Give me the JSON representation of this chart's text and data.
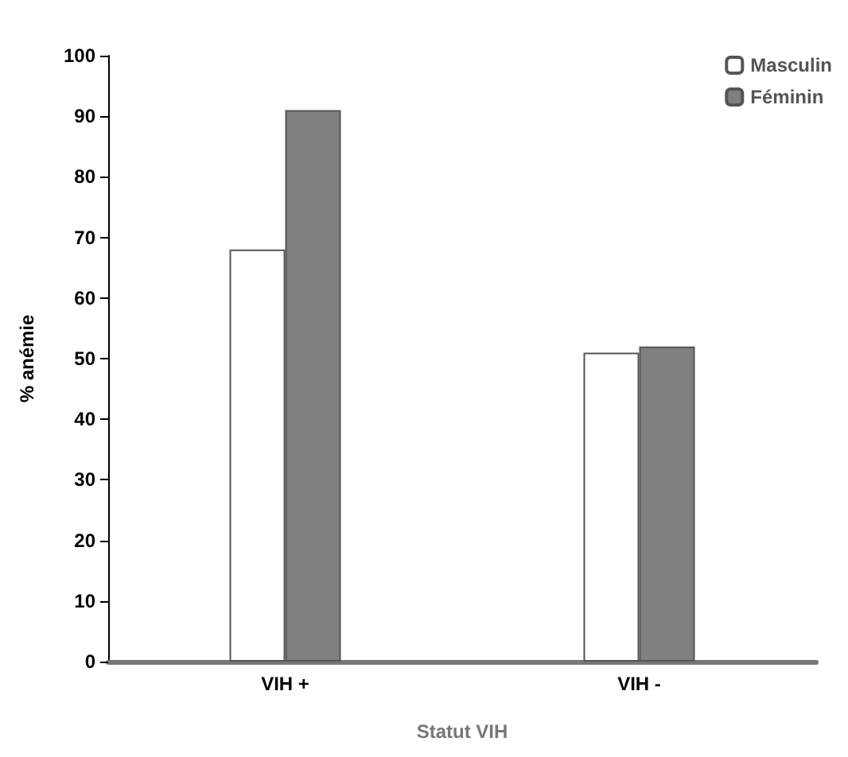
{
  "chart_data": {
    "type": "bar",
    "xlabel": "Statut VIH",
    "ylabel": "% anémie",
    "categories": [
      "VIH +",
      "VIH -"
    ],
    "series": [
      {
        "name": "Masculin",
        "color": "#ffffff",
        "values": [
          68,
          51
        ]
      },
      {
        "name": "Féminin",
        "color": "#808080",
        "values": [
          91,
          52
        ]
      }
    ],
    "ylim": [
      0,
      100
    ],
    "yticks": [
      0,
      10,
      20,
      30,
      40,
      50,
      60,
      70,
      80,
      90,
      100
    ],
    "grid": false,
    "legend": "top right"
  }
}
